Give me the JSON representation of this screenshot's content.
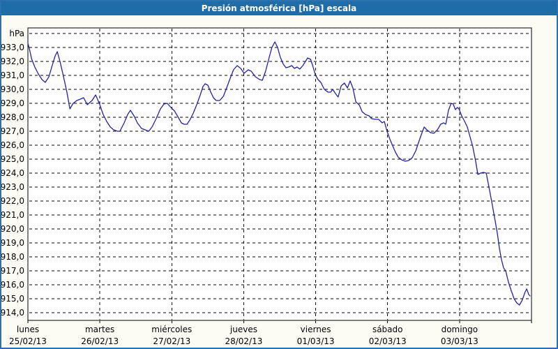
{
  "window": {
    "title": "Presión atmosférica [hPa] escala"
  },
  "colors": {
    "titlebar_bg": "#1F6DA8",
    "titlebar_text": "#FFFFFF",
    "window_border": "#2B72AC",
    "window_bg": "#FCFCF5",
    "plot_bg": "#FFFFFF",
    "plot_frame": "#000000",
    "grid": "#000000",
    "axis_text": "#000000",
    "line": "#2020AC"
  },
  "chart_data": {
    "type": "line",
    "title": "Presión atmosférica [hPa] escala",
    "grid": "dashed",
    "legend": "none",
    "y_axis": {
      "unit_label": "hPa",
      "tick_labels": [
        "933,0",
        "932,0",
        "931,0",
        "930,0",
        "929,0",
        "928,0",
        "927,0",
        "926,0",
        "925,0",
        "924,0",
        "923,0",
        "922,0",
        "921,0",
        "920,0",
        "919,0",
        "918,0",
        "917,0",
        "916,0",
        "915,0",
        "914,0"
      ],
      "tick_values": [
        933,
        932,
        931,
        930,
        929,
        928,
        927,
        926,
        925,
        924,
        923,
        922,
        921,
        920,
        919,
        918,
        917,
        916,
        915,
        914
      ],
      "top_gridline_value": 934,
      "ylim": [
        913.45,
        934.4
      ]
    },
    "x_axis": {
      "unit": "hours since lunes 00:00",
      "xlim_hours": [
        0,
        168
      ],
      "days": [
        {
          "name": "lunes",
          "date": "25/02/13"
        },
        {
          "name": "martes",
          "date": "26/02/13"
        },
        {
          "name": "miércoles",
          "date": "27/02/13"
        },
        {
          "name": "jueves",
          "date": "28/02/13"
        },
        {
          "name": "viernes",
          "date": "01/03/13"
        },
        {
          "name": "sábado",
          "date": "02/03/13"
        },
        {
          "name": "domingo",
          "date": "03/03/13"
        }
      ]
    },
    "series": [
      {
        "name": "Presión atmosférica [hPa]",
        "points": [
          [
            0,
            933.3
          ],
          [
            0.6,
            932.8
          ],
          [
            1.2,
            932.2
          ],
          [
            2.3,
            931.6
          ],
          [
            3.5,
            931.1
          ],
          [
            4.7,
            930.7
          ],
          [
            5.8,
            930.5
          ],
          [
            7,
            930.9
          ],
          [
            8.1,
            931.7
          ],
          [
            9.1,
            932.4
          ],
          [
            9.8,
            932.7
          ],
          [
            10.7,
            932.0
          ],
          [
            11.9,
            930.9
          ],
          [
            13,
            929.8
          ],
          [
            14,
            928.6
          ],
          [
            15.1,
            929.0
          ],
          [
            16.3,
            929.2
          ],
          [
            17.5,
            929.3
          ],
          [
            18.6,
            929.4
          ],
          [
            19.8,
            928.9
          ],
          [
            21.4,
            929.2
          ],
          [
            22.6,
            929.6
          ],
          [
            24,
            928.9
          ],
          [
            25.1,
            928.2
          ],
          [
            26.3,
            927.7
          ],
          [
            27.5,
            927.3
          ],
          [
            28.6,
            927.1
          ],
          [
            29.8,
            927.0
          ],
          [
            30.7,
            927.0
          ],
          [
            32.1,
            927.6
          ],
          [
            33.3,
            928.2
          ],
          [
            34.2,
            928.5
          ],
          [
            35.4,
            928.1
          ],
          [
            36.5,
            927.6
          ],
          [
            37.9,
            927.2
          ],
          [
            39.1,
            927.1
          ],
          [
            40.3,
            927.0
          ],
          [
            41.4,
            927.3
          ],
          [
            42.8,
            927.9
          ],
          [
            44.2,
            928.6
          ],
          [
            45.4,
            928.95
          ],
          [
            46.5,
            929.0
          ],
          [
            47.7,
            928.7
          ],
          [
            48.9,
            928.45
          ],
          [
            50,
            928.05
          ],
          [
            51.2,
            927.6
          ],
          [
            52.1,
            927.5
          ],
          [
            53.1,
            927.5
          ],
          [
            54,
            927.8
          ],
          [
            55.2,
            928.3
          ],
          [
            56.3,
            928.9
          ],
          [
            57.5,
            929.6
          ],
          [
            58.4,
            930.2
          ],
          [
            59.1,
            930.4
          ],
          [
            60,
            930.3
          ],
          [
            61,
            929.8
          ],
          [
            61.9,
            929.4
          ],
          [
            62.8,
            929.2
          ],
          [
            64,
            929.2
          ],
          [
            65.2,
            929.5
          ],
          [
            66.3,
            930.1
          ],
          [
            67.5,
            930.8
          ],
          [
            68.6,
            931.4
          ],
          [
            69.8,
            931.7
          ],
          [
            71,
            931.5
          ],
          [
            72.1,
            931.15
          ],
          [
            73.5,
            931.4
          ],
          [
            74.5,
            931.3
          ],
          [
            75.9,
            930.9
          ],
          [
            77.3,
            930.7
          ],
          [
            78.2,
            930.65
          ],
          [
            79.3,
            931.3
          ],
          [
            80.5,
            932.3
          ],
          [
            81.4,
            933.0
          ],
          [
            82.4,
            933.4
          ],
          [
            83.3,
            933.0
          ],
          [
            84.2,
            932.3
          ],
          [
            85.2,
            931.8
          ],
          [
            86.1,
            931.55
          ],
          [
            87,
            931.6
          ],
          [
            88,
            931.7
          ],
          [
            88.9,
            931.5
          ],
          [
            89.8,
            931.6
          ],
          [
            90.7,
            931.45
          ],
          [
            91.7,
            931.7
          ],
          [
            92.6,
            932.0
          ],
          [
            93.3,
            932.25
          ],
          [
            94.3,
            932.15
          ],
          [
            95,
            931.7
          ],
          [
            95.9,
            931.05
          ],
          [
            96.8,
            930.7
          ],
          [
            97.7,
            930.5
          ],
          [
            98.9,
            930.0
          ],
          [
            100.1,
            929.8
          ],
          [
            101,
            929.8
          ],
          [
            101.7,
            930.0
          ],
          [
            102.6,
            929.7
          ],
          [
            103.5,
            929.45
          ],
          [
            104.5,
            930.25
          ],
          [
            105.6,
            930.45
          ],
          [
            106.6,
            930.1
          ],
          [
            107.5,
            930.6
          ],
          [
            108.4,
            930.1
          ],
          [
            109.4,
            929.1
          ],
          [
            110.5,
            928.9
          ],
          [
            111.5,
            928.4
          ],
          [
            112.6,
            928.2
          ],
          [
            113.8,
            928.1
          ],
          [
            114.7,
            927.9
          ],
          [
            115.9,
            927.85
          ],
          [
            117,
            927.85
          ],
          [
            118.2,
            927.6
          ],
          [
            118.9,
            927.7
          ],
          [
            119.8,
            927.0
          ],
          [
            120.8,
            926.4
          ],
          [
            121.7,
            925.95
          ],
          [
            122.6,
            925.5
          ],
          [
            123.5,
            925.15
          ],
          [
            124.7,
            924.95
          ],
          [
            125.9,
            924.85
          ],
          [
            127,
            924.9
          ],
          [
            128.2,
            925.1
          ],
          [
            129.4,
            925.6
          ],
          [
            130.5,
            926.3
          ],
          [
            131.5,
            926.9
          ],
          [
            132.2,
            927.3
          ],
          [
            133.1,
            927.1
          ],
          [
            134.3,
            926.9
          ],
          [
            135.4,
            926.85
          ],
          [
            136.6,
            927.1
          ],
          [
            137.7,
            927.5
          ],
          [
            138.7,
            927.6
          ],
          [
            139.4,
            927.5
          ],
          [
            140.3,
            928.5
          ],
          [
            141.2,
            929.0
          ],
          [
            141.9,
            928.95
          ],
          [
            142.6,
            928.55
          ],
          [
            143.3,
            928.7
          ],
          [
            143.8,
            928.6
          ],
          [
            144.7,
            928.1
          ],
          [
            145.7,
            927.7
          ],
          [
            146.6,
            927.3
          ],
          [
            147.5,
            926.6
          ],
          [
            148.4,
            925.9
          ],
          [
            149.4,
            924.8
          ],
          [
            150.1,
            923.9
          ],
          [
            151,
            924.0
          ],
          [
            151.9,
            924.05
          ],
          [
            152.9,
            924.0
          ],
          [
            153.8,
            923.0
          ],
          [
            154.7,
            922.0
          ],
          [
            155.7,
            920.8
          ],
          [
            156.6,
            919.7
          ],
          [
            157.3,
            918.6
          ],
          [
            158,
            917.8
          ],
          [
            158.7,
            917.2
          ],
          [
            159.4,
            917.0
          ],
          [
            160.3,
            916.2
          ],
          [
            161.2,
            915.6
          ],
          [
            162.2,
            915.0
          ],
          [
            163.1,
            914.7
          ],
          [
            164,
            914.55
          ],
          [
            164.9,
            914.9
          ],
          [
            165.9,
            915.5
          ],
          [
            166.4,
            915.7
          ],
          [
            167.1,
            915.3
          ],
          [
            167.5,
            915.2
          ]
        ]
      }
    ]
  }
}
